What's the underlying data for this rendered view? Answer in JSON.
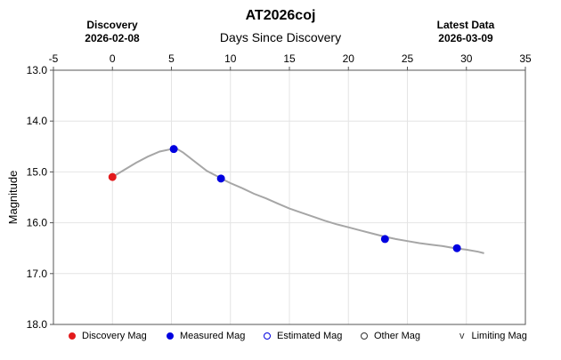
{
  "chart_data": {
    "type": "line",
    "title": "AT2026coj",
    "subtitle": "Days Since Discovery",
    "ylabel": "Magnitude",
    "header_left": {
      "label": "Discovery",
      "date": "2026-02-08"
    },
    "header_right": {
      "label": "Latest Data",
      "date": "2026-03-09"
    },
    "xlim": [
      -5,
      35
    ],
    "ylim": [
      13.0,
      18.0
    ],
    "y_inverted": true,
    "x_ticks": [
      "-5",
      "0",
      "5",
      "10",
      "15",
      "20",
      "25",
      "30",
      "35"
    ],
    "y_ticks": [
      "13.0",
      "14.0",
      "15.0",
      "16.0",
      "17.0",
      "18.0"
    ],
    "grid": true,
    "fit_curve": {
      "name": "fit",
      "color": "#a6a6a6",
      "x": [
        0,
        1,
        2,
        3,
        4,
        5,
        5.5,
        6,
        7,
        8,
        9,
        9.3,
        10,
        11,
        12,
        13,
        14,
        15,
        16,
        17,
        18,
        19,
        20,
        21,
        22,
        23,
        24,
        25,
        26,
        27,
        28,
        29,
        30,
        31,
        31.5
      ],
      "y": [
        15.1,
        14.96,
        14.82,
        14.7,
        14.6,
        14.55,
        14.55,
        14.62,
        14.8,
        14.98,
        15.1,
        15.14,
        15.22,
        15.32,
        15.43,
        15.52,
        15.62,
        15.72,
        15.8,
        15.88,
        15.96,
        16.03,
        16.09,
        16.15,
        16.21,
        16.27,
        16.32,
        16.36,
        16.4,
        16.43,
        16.46,
        16.5,
        16.53,
        16.57,
        16.6
      ]
    },
    "series": [
      {
        "name": "Discovery Mag",
        "color": "#e31a1c",
        "marker": "filled",
        "x": [
          0
        ],
        "y": [
          15.1
        ]
      },
      {
        "name": "Measured Mag",
        "color": "#0000e0",
        "marker": "filled",
        "x": [
          5.2,
          9.2,
          23.1,
          29.2
        ],
        "y": [
          14.55,
          15.13,
          16.32,
          16.5
        ]
      }
    ],
    "legend": [
      {
        "label": "Discovery Mag",
        "marker": "filled-circle",
        "color": "#e31a1c"
      },
      {
        "label": "Measured Mag",
        "marker": "filled-circle",
        "color": "#0000e0"
      },
      {
        "label": "Estimated Mag",
        "marker": "open-circle",
        "color": "#0000e0"
      },
      {
        "label": "Other Mag",
        "marker": "open-circle",
        "color": "#333333"
      },
      {
        "label": "Limiting Mag",
        "marker": "v-glyph",
        "color": "#333333",
        "glyph": "v"
      }
    ],
    "legend_position": "bottom"
  }
}
